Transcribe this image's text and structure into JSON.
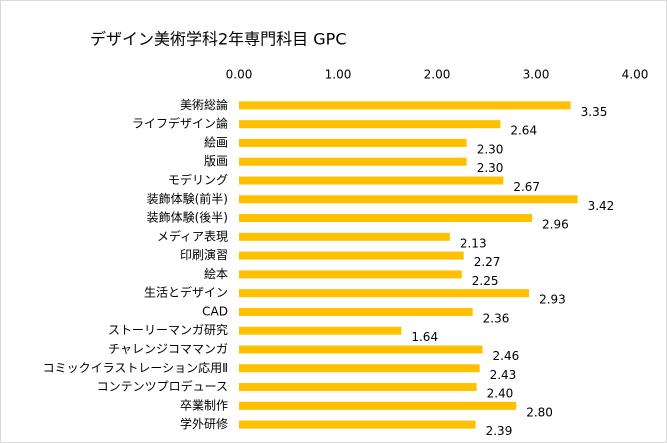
{
  "chart_data": {
    "type": "bar",
    "orientation": "horizontal",
    "title": "デザイン美術学科2年専門科目 GPC",
    "categories": [
      "美術総論",
      "ライフデザイン論",
      "絵画",
      "版画",
      "モデリング",
      "装飾体験(前半)",
      "装飾体験(後半)",
      "メディア表現",
      "印刷演習",
      "絵本",
      "生活とデザイン",
      "CAD",
      "ストーリーマンガ研究",
      "チャレンジコママンガ",
      "コミックイラストレーション応用Ⅱ",
      "コンテンツプロデュース",
      "卒業制作",
      "学外研修"
    ],
    "values": [
      3.35,
      2.64,
      2.3,
      2.3,
      2.67,
      3.42,
      2.96,
      2.13,
      2.27,
      2.25,
      2.93,
      2.36,
      1.64,
      2.46,
      2.43,
      2.4,
      2.8,
      2.39
    ],
    "value_labels": [
      "3.35",
      "2.64",
      "2.30",
      "2.30",
      "2.67",
      "3.42",
      "2.96",
      "2.13",
      "2.27",
      "2.25",
      "2.93",
      "2.36",
      "1.64",
      "2.46",
      "2.43",
      "2.40",
      "2.80",
      "2.39"
    ],
    "color": "#ffc000",
    "xlim": [
      0,
      4
    ],
    "xticks": [
      {
        "value": 0,
        "label": "0.00"
      },
      {
        "value": 1,
        "label": "1.00"
      },
      {
        "value": 2,
        "label": "2.00"
      },
      {
        "value": 3,
        "label": "3.00"
      },
      {
        "value": 4,
        "label": "4.00"
      }
    ],
    "grid": false
  }
}
